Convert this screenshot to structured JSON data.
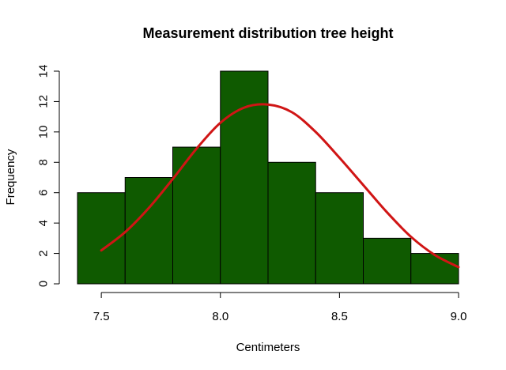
{
  "chart_data": {
    "type": "bar",
    "title": "Measurement distribution tree height",
    "xlabel": "Centimeters",
    "ylabel": "Frequency",
    "bins": [
      {
        "from": 7.4,
        "to": 7.6,
        "count": 6
      },
      {
        "from": 7.6,
        "to": 7.8,
        "count": 7
      },
      {
        "from": 7.8,
        "to": 8.0,
        "count": 9
      },
      {
        "from": 8.0,
        "to": 8.2,
        "count": 14
      },
      {
        "from": 8.2,
        "to": 8.4,
        "count": 8
      },
      {
        "from": 8.4,
        "to": 8.6,
        "count": 6
      },
      {
        "from": 8.6,
        "to": 8.8,
        "count": 3
      },
      {
        "from": 8.8,
        "to": 9.0,
        "count": 2
      }
    ],
    "curve": {
      "type": "normal-density",
      "x_range": [
        7.5,
        9.0
      ],
      "x": [
        7.5,
        7.6,
        7.7,
        7.8,
        7.9,
        8.0,
        8.1,
        8.2,
        8.3,
        8.4,
        8.5,
        8.6,
        8.7,
        8.8,
        8.9,
        9.0
      ],
      "y": [
        2.2,
        3.4,
        5.0,
        6.9,
        8.9,
        10.6,
        11.6,
        11.8,
        11.3,
        10.0,
        8.3,
        6.5,
        4.7,
        3.1,
        1.9,
        1.1
      ]
    },
    "xticks": [
      7.5,
      8.0,
      8.5,
      9.0
    ],
    "xtick_labels": [
      "7.5",
      "8.0",
      "8.5",
      "9.0"
    ],
    "yticks": [
      0,
      2,
      4,
      6,
      8,
      10,
      12,
      14
    ],
    "ytick_labels": [
      "0",
      "2",
      "4",
      "6",
      "8",
      "10",
      "12",
      "14"
    ],
    "xlim": [
      7.4,
      9.0
    ],
    "ylim": [
      0,
      14
    ],
    "grid": false,
    "colors": {
      "bar_fill": "#0f5a00",
      "bar_border": "#000000",
      "curve": "#d01515"
    }
  }
}
